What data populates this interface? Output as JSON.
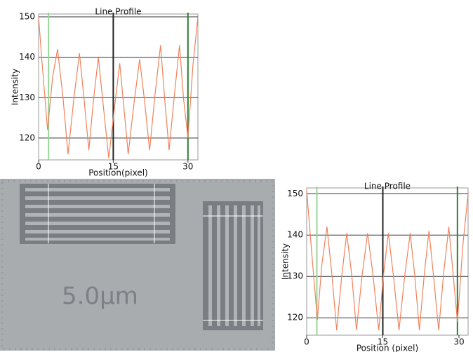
{
  "chart_data": [
    {
      "type": "line",
      "title": "Line Profile",
      "x_label": "Position(pixel)",
      "y_label": "Intensity",
      "xlim": [
        0,
        32
      ],
      "ylim": [
        114.6,
        150.7
      ],
      "xticks": [
        0,
        15,
        30
      ],
      "yticks": [
        120,
        130,
        140,
        150
      ],
      "grid": true,
      "cursors": [
        {
          "x": 2,
          "color": "#9ad49a"
        },
        {
          "x": 15,
          "color": "#222222"
        },
        {
          "x": 30,
          "color": "#2e7d32"
        }
      ],
      "x": [
        0,
        0.6,
        1.8,
        2.8,
        3.8,
        4.9,
        5.9,
        7.1,
        8.2,
        9.1,
        10.1,
        11,
        12,
        13,
        14.1,
        15.2,
        16.3,
        17.1,
        18,
        19.1,
        20.3,
        21.3,
        22.3,
        23.4,
        24.5,
        25.3,
        26.2,
        27.3,
        28.3,
        29.1,
        30,
        31,
        32
      ],
      "series": [
        {
          "color": "#f0825a",
          "values": [
            150,
            140,
            122,
            135,
            142,
            130,
            116,
            130,
            141,
            130,
            117,
            129,
            140,
            128,
            115,
            127,
            138.5,
            128,
            116,
            128,
            139.5,
            129,
            117,
            131,
            143,
            130,
            117,
            131,
            143,
            130,
            120,
            138,
            150
          ]
        }
      ]
    },
    {
      "type": "line",
      "title": "Line Profile",
      "x_label": "Position (pixel)",
      "y_label": "Intensity",
      "xlim": [
        0,
        31.8
      ],
      "ylim": [
        115.8,
        151.4
      ],
      "xticks": [
        0,
        15,
        30
      ],
      "yticks": [
        120,
        130,
        140,
        150
      ],
      "grid": true,
      "cursors": [
        {
          "x": 2,
          "color": "#9ad49a"
        },
        {
          "x": 15,
          "color": "#222222"
        },
        {
          "x": 29.7,
          "color": "#2e7d32"
        }
      ],
      "x": [
        0,
        0.7,
        2.1,
        3,
        4,
        5,
        5.9,
        6.9,
        7.9,
        8.9,
        9.8,
        10.9,
        12,
        13.1,
        14.2,
        15.1,
        16.1,
        17.1,
        18.2,
        19.3,
        20.4,
        21.3,
        22.2,
        23.2,
        24.1,
        25,
        26,
        27,
        28,
        28.9,
        29.7,
        30.8,
        31.8
      ],
      "series": [
        {
          "color": "#f0825a",
          "values": [
            151,
            140,
            119.5,
            133,
            142,
            130,
            117,
            130,
            140.5,
            130,
            117,
            130,
            140.5,
            130,
            117,
            130,
            140.5,
            130,
            117,
            130,
            140.5,
            130,
            117,
            131,
            141,
            130,
            117,
            131,
            142,
            130,
            119,
            138,
            150
          ]
        }
      ]
    }
  ],
  "micrograph": {
    "scale_label": "5.0μm"
  }
}
